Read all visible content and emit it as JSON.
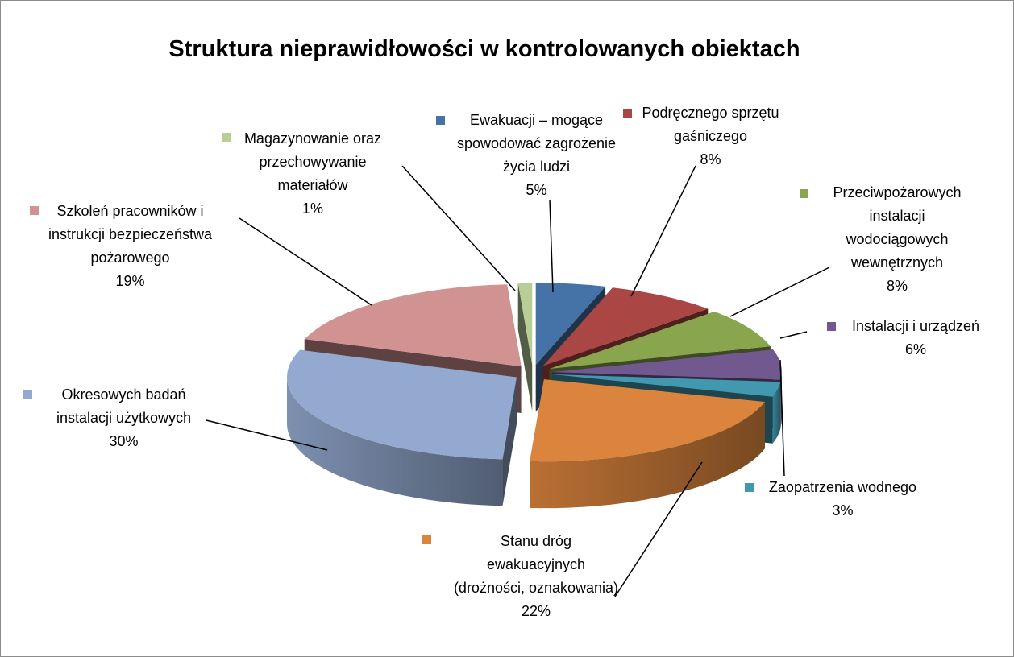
{
  "chart_data": {
    "type": "pie",
    "title": "Struktura nieprawidłowości w kontrolowanych obiektach",
    "categories": [
      "Ewakuacji – mogące spowodować zagrożenie życia ludzi",
      "Podręcznego sprzętu gaśniczego",
      "Przeciwpożarowych instalacji wodociągowych wewnętrznych",
      "Instalacji i urządzeń",
      "Zaopatrzenia wodnego",
      "Stanu dróg ewakuacyjnych (drożności, oznakowania)",
      "Okresowych badań instalacji użytkowych",
      "Szkoleń pracowników i instrukcji bezpieczeństwa pożarowego",
      "Magazynowanie oraz przechowywanie materiałów"
    ],
    "values": [
      5,
      8,
      8,
      6,
      3,
      22,
      30,
      19,
      1
    ],
    "value_labels": [
      "5%",
      "8%",
      "8%",
      "6%",
      "3%",
      "22%",
      "30%",
      "19%",
      "1%"
    ],
    "colors": [
      "#4572a7",
      "#aa4643",
      "#89a54e",
      "#71588f",
      "#4198af",
      "#db843d",
      "#93a9cf",
      "#d19392",
      "#b9cd96"
    ]
  }
}
